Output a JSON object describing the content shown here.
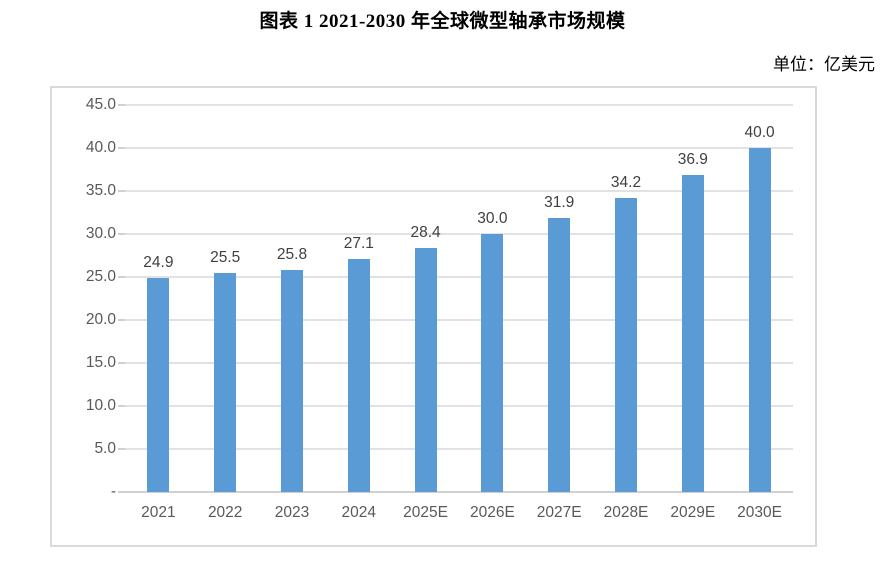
{
  "title": "图表 1 2021-2030 年全球微型轴承市场规模",
  "unit_label": "单位：亿美元",
  "chart_data": {
    "type": "bar",
    "title": "图表 1 2021-2030 年全球微型轴承市场规模",
    "unit": "亿美元",
    "categories": [
      "2021",
      "2022",
      "2023",
      "2024",
      "2025E",
      "2026E",
      "2027E",
      "2028E",
      "2029E",
      "2030E"
    ],
    "values": [
      24.9,
      25.5,
      25.8,
      27.1,
      28.4,
      30.0,
      31.9,
      34.2,
      36.9,
      40.0
    ],
    "value_labels": [
      "24.9",
      "25.5",
      "25.8",
      "27.1",
      "28.4",
      "30.0",
      "31.9",
      "34.2",
      "36.9",
      "40.0"
    ],
    "ylim": [
      0,
      45
    ],
    "ytick_interval": 5,
    "ytick_labels": [
      "-",
      "5.0",
      "10.0",
      "15.0",
      "20.0",
      "25.0",
      "30.0",
      "35.0",
      "40.0",
      "45.0"
    ],
    "xlabel": "",
    "ylabel": "",
    "grid": true,
    "legend": "none",
    "data_labels_shown": true,
    "bar_color": "#5B9BD5",
    "gridline_color": "#E2E2E2",
    "axis_line_color": "#D0D0D0",
    "frame_border_color": "#D9D9D9",
    "value_label_color": "#404040",
    "tick_label_color": "#595959",
    "title_color": "#000000"
  }
}
